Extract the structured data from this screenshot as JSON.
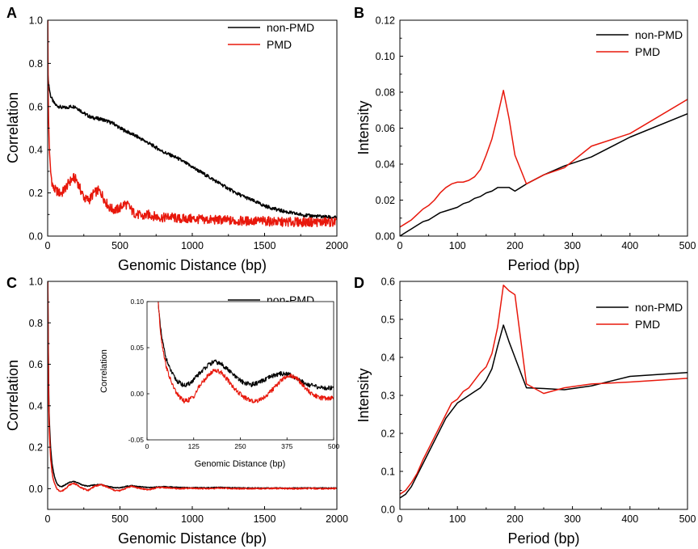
{
  "figure": {
    "panels": [
      "A",
      "B",
      "C",
      "D"
    ]
  },
  "chart_data": [
    {
      "panel": "A",
      "type": "line",
      "title": "",
      "xlabel": "Genomic Distance (bp)",
      "ylabel": "Correlation",
      "xlim": [
        0,
        2000
      ],
      "ylim": [
        0,
        1.0
      ],
      "xticks": [
        0,
        500,
        1000,
        1500,
        2000
      ],
      "yticks": [
        0.0,
        0.2,
        0.4,
        0.6,
        0.8,
        1.0
      ],
      "legend_position": "top-right",
      "grid": false,
      "series": [
        {
          "name": "non-PMD",
          "color": "#000000",
          "x": [
            1,
            5,
            10,
            20,
            40,
            60,
            80,
            100,
            130,
            160,
            190,
            220,
            260,
            300,
            340,
            380,
            420,
            460,
            500,
            560,
            620,
            700,
            800,
            900,
            1000,
            1100,
            1200,
            1300,
            1400,
            1500,
            1600,
            1700,
            1800,
            1900,
            2000
          ],
          "y": [
            0.75,
            0.72,
            0.69,
            0.65,
            0.62,
            0.605,
            0.6,
            0.595,
            0.595,
            0.6,
            0.6,
            0.585,
            0.565,
            0.55,
            0.545,
            0.54,
            0.53,
            0.52,
            0.5,
            0.48,
            0.46,
            0.43,
            0.39,
            0.36,
            0.32,
            0.28,
            0.24,
            0.2,
            0.17,
            0.14,
            0.12,
            0.105,
            0.095,
            0.09,
            0.085
          ]
        },
        {
          "name": "PMD",
          "color": "#e8180c",
          "x": [
            1,
            3,
            6,
            10,
            15,
            20,
            30,
            40,
            60,
            80,
            100,
            120,
            150,
            180,
            200,
            230,
            260,
            290,
            320,
            350,
            370,
            400,
            430,
            470,
            500,
            530,
            560,
            590,
            620,
            660,
            700,
            750,
            800,
            850,
            900,
            1000,
            1100,
            1200,
            1300,
            1400,
            1500,
            1600,
            1700,
            1800,
            1900,
            2000
          ],
          "y": [
            1.0,
            0.7,
            0.55,
            0.45,
            0.35,
            0.3,
            0.25,
            0.22,
            0.21,
            0.2,
            0.2,
            0.22,
            0.25,
            0.27,
            0.26,
            0.21,
            0.17,
            0.17,
            0.2,
            0.21,
            0.2,
            0.16,
            0.13,
            0.12,
            0.13,
            0.15,
            0.14,
            0.11,
            0.1,
            0.09,
            0.1,
            0.09,
            0.085,
            0.09,
            0.08,
            0.08,
            0.075,
            0.075,
            0.07,
            0.07,
            0.07,
            0.065,
            0.065,
            0.065,
            0.065,
            0.065
          ]
        }
      ]
    },
    {
      "panel": "B",
      "type": "line",
      "title": "",
      "xlabel": "Period (bp)",
      "ylabel": "Intensity",
      "xlim": [
        0,
        500
      ],
      "ylim": [
        0,
        0.12
      ],
      "xticks": [
        0,
        100,
        200,
        300,
        400,
        500
      ],
      "yticks": [
        0.0,
        0.02,
        0.04,
        0.06,
        0.08,
        0.1,
        0.12
      ],
      "legend_position": "top-right",
      "grid": false,
      "series": [
        {
          "name": "non-PMD",
          "color": "#000000",
          "x": [
            0,
            10,
            20,
            30,
            40,
            50,
            60,
            70,
            80,
            90,
            100,
            110,
            120,
            130,
            140,
            150,
            160,
            170,
            180,
            190,
            200,
            210,
            220,
            250,
            286,
            333,
            400,
            500
          ],
          "y": [
            0.0,
            0.002,
            0.004,
            0.006,
            0.008,
            0.009,
            0.011,
            0.013,
            0.014,
            0.015,
            0.016,
            0.018,
            0.019,
            0.021,
            0.022,
            0.024,
            0.025,
            0.027,
            0.027,
            0.027,
            0.025,
            0.027,
            0.029,
            0.034,
            0.039,
            0.044,
            0.055,
            0.068
          ]
        },
        {
          "name": "PMD",
          "color": "#e8180c",
          "x": [
            0,
            10,
            20,
            30,
            40,
            50,
            60,
            70,
            80,
            90,
            100,
            110,
            120,
            130,
            140,
            150,
            160,
            170,
            180,
            190,
            200,
            220,
            250,
            286,
            333,
            400,
            500
          ],
          "y": [
            0.005,
            0.007,
            0.009,
            0.012,
            0.015,
            0.017,
            0.02,
            0.024,
            0.027,
            0.029,
            0.03,
            0.03,
            0.031,
            0.033,
            0.037,
            0.045,
            0.054,
            0.067,
            0.081,
            0.065,
            0.045,
            0.029,
            0.034,
            0.038,
            0.05,
            0.057,
            0.076
          ]
        }
      ]
    },
    {
      "panel": "C",
      "type": "line",
      "title": "",
      "xlabel": "Genomic Distance (bp)",
      "ylabel": "Correlation",
      "xlim": [
        0,
        2000
      ],
      "ylim": [
        -0.1,
        1.0
      ],
      "xticks": [
        0,
        500,
        1000,
        1500,
        2000
      ],
      "yticks": [
        0.0,
        0.2,
        0.4,
        0.6,
        0.8,
        1.0
      ],
      "legend_position": "top-right",
      "grid": false,
      "series": [
        {
          "name": "non-PMD",
          "color": "#000000",
          "x": [
            1,
            5,
            10,
            20,
            30,
            40,
            50,
            60,
            70,
            80,
            100,
            130,
            150,
            180,
            210,
            250,
            280,
            320,
            370,
            420,
            460,
            500,
            550,
            580,
            630,
            700,
            760,
            800,
            900,
            1000,
            1100,
            1200,
            1300,
            1400,
            1500,
            1600,
            1700,
            1800,
            1900,
            2000
          ],
          "y": [
            1.0,
            0.6,
            0.35,
            0.2,
            0.12,
            0.08,
            0.05,
            0.03,
            0.02,
            0.012,
            0.01,
            0.022,
            0.03,
            0.035,
            0.028,
            0.015,
            0.012,
            0.018,
            0.02,
            0.01,
            0.005,
            0.004,
            0.012,
            0.015,
            0.01,
            0.005,
            0.008,
            0.01,
            0.006,
            0.005,
            0.004,
            0.006,
            0.004,
            0.003,
            0.003,
            0.003,
            0.003,
            0.003,
            0.003,
            0.003
          ]
        },
        {
          "name": "PMD",
          "color": "#e8180c",
          "x": [
            1,
            5,
            10,
            20,
            30,
            40,
            50,
            60,
            70,
            80,
            100,
            130,
            150,
            180,
            210,
            250,
            280,
            320,
            370,
            420,
            460,
            500,
            550,
            580,
            630,
            700,
            760,
            800,
            900,
            1000,
            1100,
            1200,
            1300,
            1400,
            1500,
            1600,
            1700,
            1800,
            1900,
            2000
          ],
          "y": [
            1.0,
            0.55,
            0.3,
            0.15,
            0.08,
            0.04,
            0.02,
            0.005,
            -0.005,
            -0.01,
            -0.012,
            0.005,
            0.018,
            0.026,
            0.015,
            -0.002,
            -0.008,
            0.01,
            0.02,
            0.005,
            -0.008,
            -0.01,
            0.005,
            0.012,
            0.002,
            -0.005,
            0.005,
            0.006,
            0.0,
            0.002,
            0.0,
            0.003,
            0.0,
            0.001,
            0.0,
            0.001,
            0.0,
            0.001,
            0.0,
            0.001
          ]
        }
      ],
      "inset": {
        "type": "line",
        "xlabel": "Genomic Distance (bp)",
        "ylabel": "Correlation",
        "xlim": [
          0,
          500
        ],
        "ylim": [
          -0.05,
          0.1
        ],
        "xticks": [
          0,
          125,
          250,
          375,
          500
        ],
        "yticks": [
          -0.05,
          0.0,
          0.05,
          0.1
        ],
        "ytick_labels": [
          "-0.05",
          "0.00",
          "0.05",
          "0.10"
        ],
        "series": [
          {
            "name": "non-PMD",
            "color": "#000000",
            "x": [
              30,
              35,
              40,
              50,
              60,
              70,
              80,
              90,
              100,
              110,
              125,
              140,
              160,
              180,
              200,
              220,
              240,
              260,
              280,
              300,
              320,
              340,
              360,
              380,
              400,
              420,
              440,
              460,
              480,
              500
            ],
            "y": [
              0.1,
              0.075,
              0.06,
              0.04,
              0.028,
              0.02,
              0.014,
              0.011,
              0.009,
              0.01,
              0.015,
              0.022,
              0.03,
              0.035,
              0.032,
              0.025,
              0.017,
              0.012,
              0.01,
              0.012,
              0.016,
              0.02,
              0.022,
              0.021,
              0.017,
              0.012,
              0.009,
              0.007,
              0.006,
              0.007
            ]
          },
          {
            "name": "PMD",
            "color": "#e8180c",
            "x": [
              30,
              35,
              40,
              50,
              60,
              70,
              80,
              90,
              100,
              110,
              125,
              140,
              160,
              180,
              200,
              220,
              240,
              260,
              280,
              300,
              320,
              340,
              360,
              380,
              400,
              420,
              440,
              460,
              480,
              500
            ],
            "y": [
              0.1,
              0.072,
              0.055,
              0.032,
              0.018,
              0.008,
              0.0,
              -0.005,
              -0.008,
              -0.007,
              -0.003,
              0.008,
              0.018,
              0.026,
              0.023,
              0.013,
              0.003,
              -0.004,
              -0.008,
              -0.007,
              -0.002,
              0.006,
              0.015,
              0.02,
              0.017,
              0.008,
              0.0,
              -0.004,
              -0.005,
              -0.004
            ]
          }
        ]
      }
    },
    {
      "panel": "D",
      "type": "line",
      "title": "",
      "xlabel": "Period (bp)",
      "ylabel": "Intensity",
      "xlim": [
        0,
        500
      ],
      "ylim": [
        0,
        0.6
      ],
      "xticks": [
        0,
        100,
        200,
        300,
        400,
        500
      ],
      "yticks": [
        0.0,
        0.1,
        0.2,
        0.3,
        0.4,
        0.5,
        0.6
      ],
      "legend_position": "top-right",
      "grid": false,
      "series": [
        {
          "name": "non-PMD",
          "color": "#000000",
          "x": [
            0,
            10,
            20,
            30,
            40,
            50,
            60,
            70,
            80,
            90,
            100,
            110,
            120,
            130,
            140,
            150,
            160,
            170,
            180,
            190,
            200,
            220,
            250,
            286,
            333,
            400,
            500
          ],
          "y": [
            0.03,
            0.04,
            0.06,
            0.09,
            0.12,
            0.15,
            0.18,
            0.21,
            0.24,
            0.26,
            0.28,
            0.29,
            0.3,
            0.31,
            0.32,
            0.34,
            0.37,
            0.43,
            0.485,
            0.44,
            0.4,
            0.32,
            0.318,
            0.315,
            0.325,
            0.35,
            0.36
          ]
        },
        {
          "name": "PMD",
          "color": "#e8180c",
          "x": [
            0,
            10,
            20,
            30,
            40,
            50,
            60,
            70,
            80,
            90,
            100,
            110,
            120,
            130,
            140,
            150,
            160,
            170,
            180,
            190,
            200,
            220,
            250,
            286,
            333,
            400,
            500
          ],
          "y": [
            0.04,
            0.05,
            0.07,
            0.095,
            0.13,
            0.16,
            0.19,
            0.22,
            0.25,
            0.28,
            0.29,
            0.31,
            0.32,
            0.34,
            0.36,
            0.375,
            0.41,
            0.48,
            0.59,
            0.575,
            0.565,
            0.33,
            0.305,
            0.32,
            0.33,
            0.335,
            0.345
          ]
        }
      ]
    }
  ]
}
